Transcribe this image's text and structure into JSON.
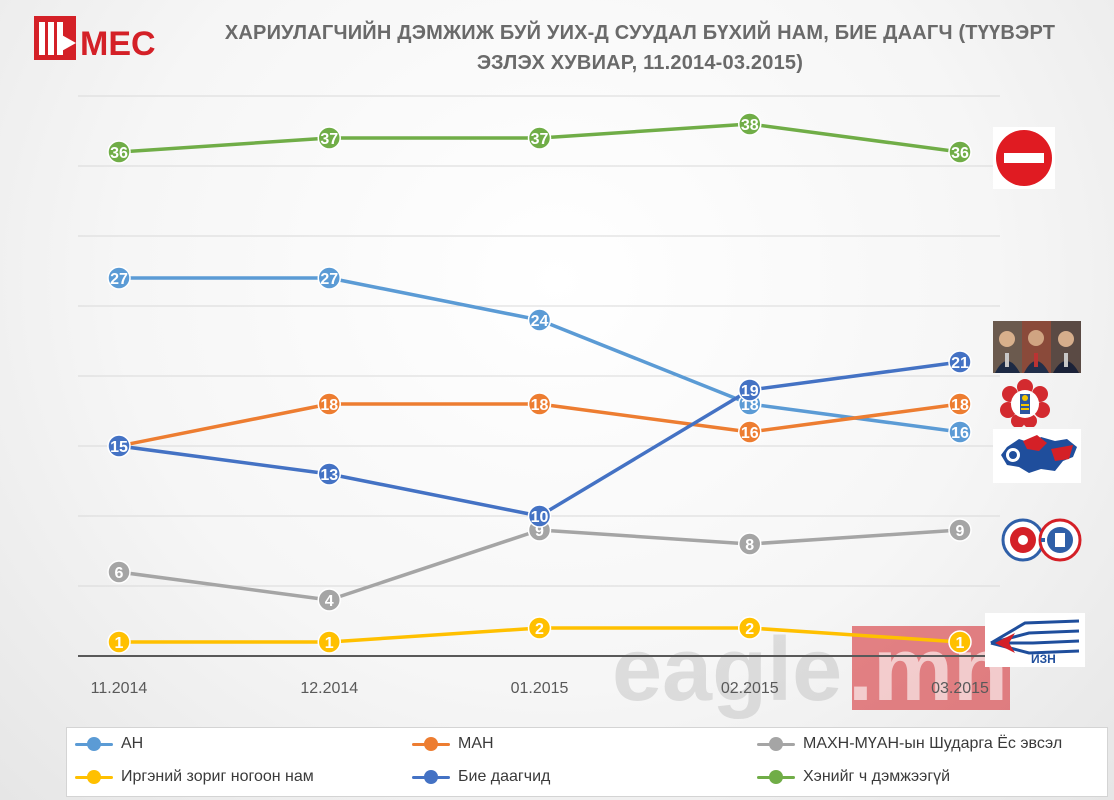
{
  "logo": {
    "text": "MEC",
    "color": "#d42027"
  },
  "title": {
    "line1": "ХАРИУЛАГЧИЙН ДЭМЖИЖ БУЙ УИХ-Д СУУДАЛ БҮХИЙ НАМ, БИЕ ДААГЧ (ТҮҮВЭРТ",
    "line2": "ЭЗЛЭХ ХУВИАР, 11.2014-03.2015)"
  },
  "watermark": {
    "text_main": "eagle",
    "text_suffix": ".mn"
  },
  "chart_data": {
    "type": "line",
    "title": "ХАРИУЛАГЧИЙН ДЭМЖИЖ БУЙ УИХ-Д СУУДАЛ БҮХИЙ НАМ, БИЕ ДААГЧ (ТҮҮВЭРТ ЭЗЛЭХ ХУВИАР, 11.2014-03.2015)",
    "categories": [
      "11.2014",
      "12.2014",
      "01.2015",
      "02.2015",
      "03.2015"
    ],
    "ylim": [
      0,
      40
    ],
    "grid": true,
    "legend_position": "bottom",
    "series": [
      {
        "name": "АН",
        "color": "#5b9bd5",
        "values": [
          27,
          27,
          24,
          18,
          16
        ]
      },
      {
        "name": "МАН",
        "color": "#ed7d31",
        "values": [
          15,
          18,
          18,
          16,
          18
        ]
      },
      {
        "name": "МАХН-МҮАН-ын Шударга Ёс эвсэл",
        "color": "#a5a5a5",
        "values": [
          6,
          4,
          9,
          8,
          9
        ]
      },
      {
        "name": "Иргэний зориг ногоон нам",
        "color": "#ffc000",
        "values": [
          1,
          1,
          2,
          2,
          1
        ]
      },
      {
        "name": "Бие даагчид",
        "color": "#4472c4",
        "values": [
          15,
          13,
          10,
          19,
          21
        ]
      },
      {
        "name": "Хэнийг ч дэмжээгүй",
        "color": "#70ad47",
        "values": [
          36,
          37,
          37,
          38,
          36
        ]
      }
    ]
  },
  "side_icons": [
    {
      "icon": "no-entry-sign-icon",
      "series": "Хэнийг ч дэмжээгүй"
    },
    {
      "icon": "independents-photo-icon",
      "series": "Бие даагчид"
    },
    {
      "icon": "man-party-emblem-icon",
      "series": "МАН"
    },
    {
      "icon": "an-party-emblem-icon",
      "series": "АН"
    },
    {
      "icon": "justice-coalition-emblem-icon",
      "series": "МАХН-МҮАН-ын Шударга Ёс эвсэл"
    },
    {
      "icon": "izn-party-emblem-icon",
      "series": "Иргэний зориг ногоон нам",
      "text": "ИЗН"
    }
  ]
}
